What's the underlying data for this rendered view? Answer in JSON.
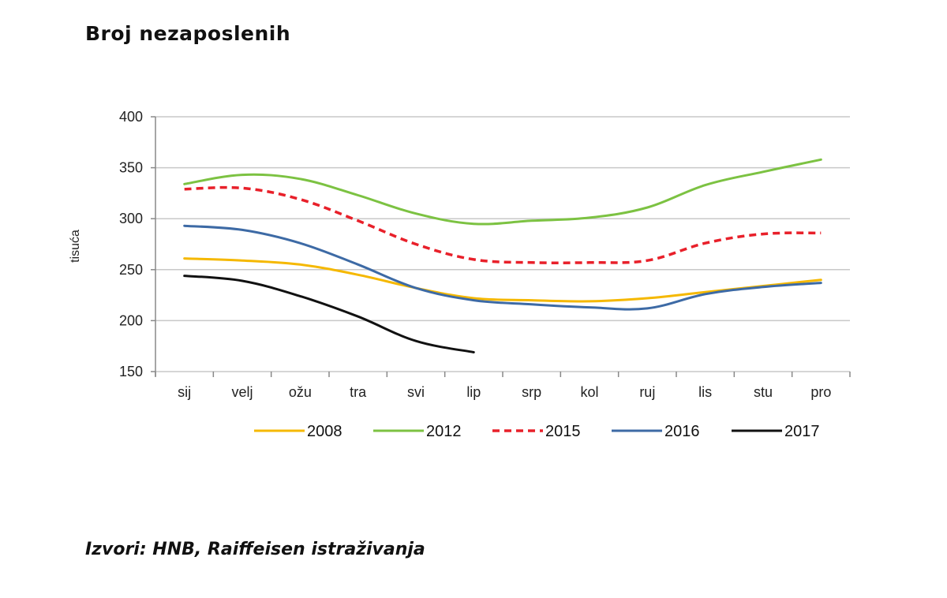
{
  "title": "Broj nezaposlenih",
  "source": "Izvori: HNB, Raiffeisen istraživanja",
  "chart_data": {
    "type": "line",
    "categories": [
      "sij",
      "velj",
      "ožu",
      "tra",
      "svi",
      "lip",
      "srp",
      "kol",
      "ruj",
      "lis",
      "stu",
      "pro"
    ],
    "ylabel": "tisuća",
    "ylim": [
      150,
      400
    ],
    "yticks": [
      150,
      200,
      250,
      300,
      350,
      400
    ],
    "grid": true,
    "legend_position": "bottom",
    "series": [
      {
        "name": "2008",
        "color": "#f5b800",
        "dash": false,
        "values": [
          261,
          259,
          255,
          245,
          232,
          222,
          220,
          219,
          222,
          228,
          234,
          240
        ]
      },
      {
        "name": "2012",
        "color": "#7cc242",
        "dash": false,
        "values": [
          334,
          343,
          339,
          323,
          305,
          295,
          298,
          301,
          311,
          333,
          346,
          358
        ]
      },
      {
        "name": "2015",
        "color": "#e8202a",
        "dash": true,
        "values": [
          329,
          330,
          319,
          298,
          275,
          260,
          257,
          257,
          259,
          276,
          285,
          286
        ]
      },
      {
        "name": "2016",
        "color": "#3d6aa5",
        "dash": false,
        "values": [
          293,
          289,
          276,
          255,
          232,
          220,
          216,
          213,
          212,
          226,
          233,
          237
        ]
      },
      {
        "name": "2017",
        "color": "#111111",
        "dash": false,
        "values": [
          244,
          239,
          224,
          204,
          180,
          169,
          null,
          null,
          null,
          null,
          null,
          null
        ]
      }
    ]
  }
}
